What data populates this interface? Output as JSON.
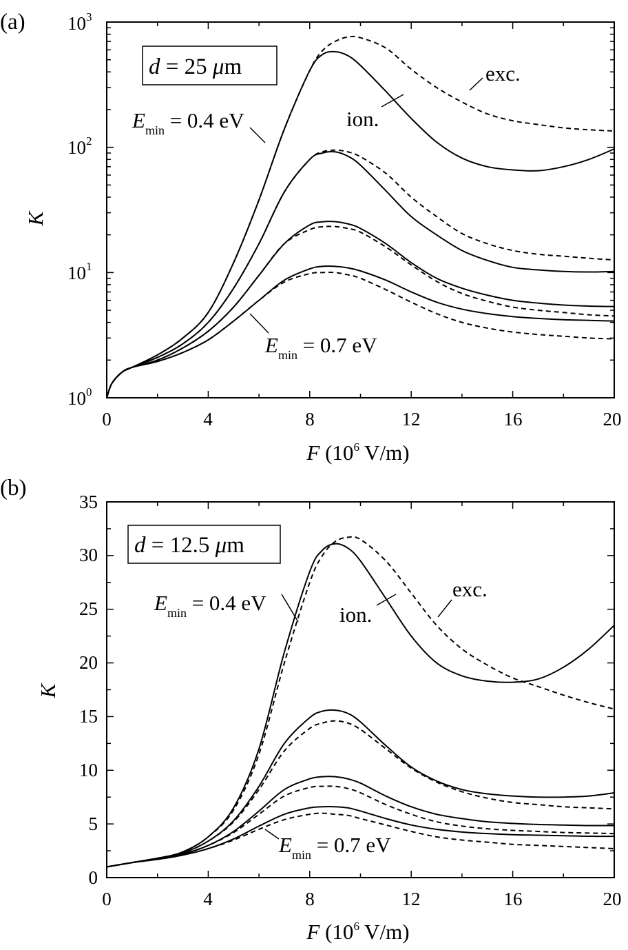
{
  "chart_data": [
    {
      "type": "line",
      "panel_label": "(a)",
      "ylabel": "K",
      "xlabel": {
        "var": "F",
        "unit_pre": " (10",
        "unit_exp": "6",
        "unit_post": " V/m)"
      },
      "xlim": [
        0,
        20
      ],
      "ylim": [
        1,
        1000
      ],
      "yscale": "log",
      "x_ticks": [
        "0",
        "4",
        "8",
        "12",
        "16",
        "20"
      ],
      "y_ticks": [
        {
          "base": "10",
          "exp": "0"
        },
        {
          "base": "10",
          "exp": "1"
        },
        {
          "base": "10",
          "exp": "2"
        },
        {
          "base": "10",
          "exp": "3"
        }
      ],
      "box_label": {
        "var": "d",
        "text": " = 25 ",
        "mu": "μ",
        "unit": "m"
      },
      "annotations": {
        "emin_high": {
          "pre": "E",
          "sub": "min",
          "post": " = 0.4 eV"
        },
        "emin_low": {
          "pre": "E",
          "sub": "min",
          "post": " = 0.7 eV"
        },
        "ion": "ion.",
        "exc": "exc."
      },
      "x": [
        0,
        0.2,
        0.6,
        1,
        2,
        3,
        4,
        5,
        6,
        7,
        8,
        8.5,
        9,
        9.5,
        10,
        11,
        12,
        13,
        14,
        15,
        16,
        17,
        18,
        19,
        20
      ],
      "series": [
        {
          "style": "solid",
          "values": [
            1,
            1.3,
            1.6,
            1.75,
            2.2,
            3.0,
            4.8,
            12,
            38,
            140,
            410,
            550,
            580,
            540,
            450,
            280,
            170,
            110,
            82,
            70,
            66,
            65,
            70,
            80,
            97
          ]
        },
        {
          "style": "dashed",
          "values": [
            1,
            1.3,
            1.6,
            1.75,
            2.2,
            3.0,
            4.8,
            12,
            38,
            140,
            410,
            590,
            700,
            760,
            750,
            620,
            420,
            300,
            230,
            185,
            163,
            152,
            143,
            138,
            135
          ]
        },
        {
          "style": "solid",
          "values": [
            1,
            1.3,
            1.6,
            1.75,
            2.1,
            2.7,
            4.0,
            7.5,
            17,
            44,
            80,
            90,
            92,
            85,
            72,
            45,
            28,
            20,
            15,
            12.5,
            11,
            10.5,
            10.2,
            10.1,
            10.2
          ]
        },
        {
          "style": "dashed",
          "values": [
            1,
            1.3,
            1.6,
            1.75,
            2.1,
            2.7,
            4.0,
            7.5,
            17,
            44,
            80,
            92,
            95,
            92,
            84,
            62,
            40,
            28,
            20.5,
            17,
            15,
            14,
            13.5,
            13,
            12.6
          ]
        },
        {
          "style": "solid",
          "values": [
            1,
            1.3,
            1.6,
            1.75,
            2.0,
            2.5,
            3.4,
            5.3,
            9.5,
            17,
            24,
            25.4,
            25.5,
            24.5,
            22.5,
            17,
            12,
            9,
            7.5,
            6.6,
            6.0,
            5.7,
            5.5,
            5.4,
            5.35
          ]
        },
        {
          "style": "dashed",
          "values": [
            1,
            1.3,
            1.6,
            1.75,
            2.0,
            2.5,
            3.4,
            5.3,
            9.5,
            17,
            22,
            23.2,
            23.3,
            22.5,
            21,
            16,
            11.5,
            8.5,
            6.8,
            5.9,
            5.3,
            5.0,
            4.8,
            4.6,
            4.5
          ]
        },
        {
          "style": "solid",
          "values": [
            1,
            1.3,
            1.6,
            1.75,
            1.95,
            2.3,
            2.9,
            4.1,
            6.0,
            8.7,
            10.7,
            11.2,
            11.2,
            10.9,
            10.3,
            8.7,
            7.0,
            5.8,
            5.1,
            4.7,
            4.45,
            4.3,
            4.2,
            4.15,
            4.1
          ]
        },
        {
          "style": "dashed",
          "values": [
            1,
            1.3,
            1.6,
            1.75,
            1.95,
            2.3,
            2.9,
            4.1,
            6.0,
            8.4,
            9.8,
            10.0,
            10.0,
            9.6,
            9.0,
            7.3,
            5.8,
            4.7,
            4.0,
            3.6,
            3.35,
            3.2,
            3.1,
            3.0,
            2.95
          ]
        }
      ]
    },
    {
      "type": "line",
      "panel_label": "(b)",
      "ylabel": "K",
      "xlabel": {
        "var": "F",
        "unit_pre": " (10",
        "unit_exp": "6",
        "unit_post": " V/m)"
      },
      "xlim": [
        0,
        20
      ],
      "ylim": [
        0,
        35
      ],
      "yscale": "linear",
      "x_ticks": [
        "0",
        "4",
        "8",
        "12",
        "16",
        "20"
      ],
      "y_ticks": [
        "0",
        "5",
        "10",
        "15",
        "20",
        "25",
        "30",
        "35"
      ],
      "box_label": {
        "var": "d",
        "text": " = 12.5 ",
        "mu": "μ",
        "unit": "m"
      },
      "annotations": {
        "emin_high": {
          "pre": "E",
          "sub": "min",
          "post": " = 0.4 eV"
        },
        "emin_low": {
          "pre": "E",
          "sub": "min",
          "post": " = 0.7 eV"
        },
        "ion": "ion.",
        "exc": "exc."
      },
      "x": [
        0,
        1,
        2,
        3,
        4,
        5,
        6,
        7,
        8,
        8.5,
        9,
        9.5,
        10,
        11,
        12,
        13,
        14,
        15,
        16,
        17,
        18,
        19,
        20
      ],
      "series": [
        {
          "style": "solid",
          "values": [
            1.0,
            1.4,
            1.8,
            2.4,
            3.8,
            6.5,
            12,
            21,
            28.5,
            30.5,
            31.1,
            30.7,
            29.5,
            26,
            22.5,
            20,
            18.8,
            18.3,
            18.2,
            18.5,
            19.6,
            21.3,
            23.5
          ]
        },
        {
          "style": "dashed",
          "values": [
            1.0,
            1.4,
            1.8,
            2.4,
            3.8,
            6.3,
            11.5,
            20,
            27.5,
            30,
            31.3,
            31.7,
            31.5,
            29.5,
            26.5,
            23.5,
            21.3,
            19.8,
            18.6,
            17.8,
            17,
            16.3,
            15.7
          ]
        },
        {
          "style": "solid",
          "values": [
            1.0,
            1.4,
            1.8,
            2.3,
            3.4,
            5.3,
            8.5,
            12.5,
            14.9,
            15.5,
            15.6,
            15.3,
            14.5,
            12.3,
            10.3,
            9.0,
            8.2,
            7.8,
            7.6,
            7.5,
            7.5,
            7.6,
            7.9
          ]
        },
        {
          "style": "dashed",
          "values": [
            1.0,
            1.4,
            1.8,
            2.3,
            3.4,
            5.2,
            8.2,
            11.8,
            13.9,
            14.4,
            14.6,
            14.4,
            13.8,
            12.0,
            10.2,
            8.9,
            8.0,
            7.4,
            7.0,
            6.8,
            6.6,
            6.5,
            6.4
          ]
        },
        {
          "style": "solid",
          "values": [
            1.0,
            1.4,
            1.8,
            2.2,
            3.0,
            4.3,
            6.2,
            8.2,
            9.2,
            9.4,
            9.4,
            9.2,
            8.8,
            7.6,
            6.6,
            5.9,
            5.5,
            5.2,
            5.05,
            4.95,
            4.9,
            4.85,
            4.85
          ]
        },
        {
          "style": "dashed",
          "values": [
            1.0,
            1.4,
            1.8,
            2.2,
            3.0,
            4.2,
            5.9,
            7.6,
            8.4,
            8.5,
            8.5,
            8.3,
            7.9,
            6.8,
            5.9,
            5.2,
            4.8,
            4.55,
            4.4,
            4.3,
            4.2,
            4.15,
            4.1
          ]
        },
        {
          "style": "solid",
          "values": [
            1.0,
            1.4,
            1.7,
            2.1,
            2.7,
            3.6,
            4.8,
            5.9,
            6.5,
            6.6,
            6.6,
            6.5,
            6.2,
            5.5,
            4.9,
            4.5,
            4.25,
            4.1,
            4.0,
            3.95,
            3.9,
            3.85,
            3.85
          ]
        },
        {
          "style": "dashed",
          "values": [
            1.0,
            1.4,
            1.7,
            2.1,
            2.7,
            3.5,
            4.5,
            5.4,
            5.9,
            6.0,
            5.9,
            5.8,
            5.5,
            4.9,
            4.3,
            3.8,
            3.5,
            3.3,
            3.1,
            3.0,
            2.9,
            2.8,
            2.7
          ]
        }
      ]
    }
  ]
}
